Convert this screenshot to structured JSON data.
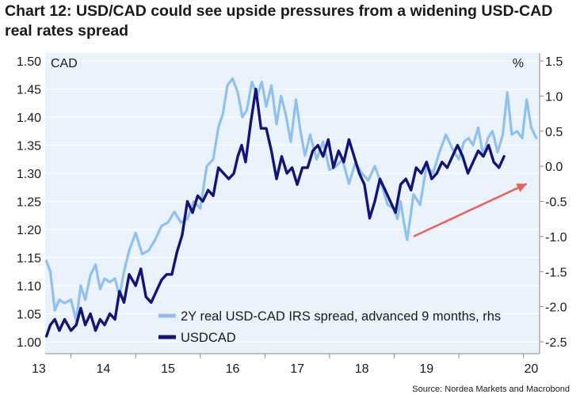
{
  "title": "Chart 12: USD/CAD could see upside pressures from a widening USD-CAD real rates spread",
  "source": "Source: Nordea Markets and Macrobond",
  "chart_data": {
    "type": "line",
    "x_ticks": [
      "13",
      "14",
      "15",
      "16",
      "17",
      "18",
      "19",
      "20"
    ],
    "x_range": [
      2012.6,
      2020.25
    ],
    "left_axis": {
      "label": "CAD",
      "range": [
        1.0,
        1.5
      ],
      "ticks": [
        "1.00",
        "1.05",
        "1.10",
        "1.15",
        "1.20",
        "1.25",
        "1.30",
        "1.35",
        "1.40",
        "1.45",
        "1.50"
      ]
    },
    "right_axis": {
      "label": "%",
      "range": [
        -2.5,
        1.5
      ],
      "ticks": [
        "1.5",
        "1.0",
        "0.5",
        "0.0",
        "-0.5",
        "-1.0",
        "-1.5",
        "-2.0",
        "-2.5"
      ]
    },
    "series": [
      {
        "name": "2Y real USD-CAD IRS spread, advanced 9 months, rhs",
        "axis": "right",
        "color": "#8fc0ee",
        "x": [
          2012.62,
          2012.68,
          2012.75,
          2012.82,
          2012.9,
          2013.0,
          2013.08,
          2013.15,
          2013.22,
          2013.3,
          2013.38,
          2013.45,
          2013.52,
          2013.6,
          2013.68,
          2013.75,
          2013.82,
          2013.9,
          2014.0,
          2014.1,
          2014.2,
          2014.3,
          2014.4,
          2014.5,
          2014.6,
          2014.7,
          2014.8,
          2014.9,
          2015.0,
          2015.1,
          2015.2,
          2015.28,
          2015.35,
          2015.42,
          2015.5,
          2015.58,
          2015.65,
          2015.72,
          2015.8,
          2015.88,
          2015.95,
          2016.02,
          2016.1,
          2016.18,
          2016.25,
          2016.32,
          2016.4,
          2016.48,
          2016.55,
          2016.62,
          2016.7,
          2016.8,
          2016.9,
          2017.0,
          2017.1,
          2017.2,
          2017.3,
          2017.4,
          2017.5,
          2017.6,
          2017.7,
          2017.8,
          2017.9,
          2018.0,
          2018.05,
          2018.1,
          2018.15,
          2018.2,
          2018.3,
          2018.4,
          2018.5,
          2018.6,
          2018.7,
          2018.8,
          2018.9,
          2019.0,
          2019.08,
          2019.15,
          2019.22,
          2019.3,
          2019.38,
          2019.45,
          2019.52,
          2019.6,
          2019.68,
          2019.75,
          2019.82,
          2019.9,
          2019.98,
          2020.05,
          2020.12,
          2020.2
        ],
        "values": [
          -1.35,
          -1.5,
          -2.05,
          -1.9,
          -1.95,
          -1.9,
          -2.2,
          -1.7,
          -1.9,
          -1.55,
          -1.4,
          -1.75,
          -1.6,
          -1.65,
          -1.6,
          -1.85,
          -1.5,
          -1.2,
          -0.95,
          -1.25,
          -1.2,
          -1.05,
          -0.85,
          -0.8,
          -0.65,
          -0.8,
          -0.75,
          -0.5,
          -0.6,
          0.0,
          0.1,
          0.55,
          0.75,
          1.15,
          1.25,
          1.05,
          0.7,
          0.8,
          1.2,
          1.0,
          1.2,
          0.85,
          1.15,
          0.6,
          1.0,
          0.75,
          0.35,
          0.95,
          0.5,
          0.15,
          0.45,
          0.1,
          0.35,
          -0.05,
          0.0,
          0.1,
          -0.25,
          0.05,
          -0.1,
          -0.2,
          0.0,
          -0.25,
          -0.55,
          -0.6,
          -0.75,
          -0.5,
          -0.8,
          -1.05,
          -0.4,
          -0.55,
          0.0,
          -0.1,
          0.2,
          0.45,
          0.25,
          0.1,
          0.35,
          0.4,
          0.3,
          0.55,
          0.15,
          0.4,
          0.5,
          0.2,
          0.45,
          1.05,
          0.45,
          0.5,
          0.4,
          0.95,
          0.55,
          0.4
        ]
      },
      {
        "name": "USDCAD",
        "axis": "left",
        "color": "#141478",
        "x": [
          2012.62,
          2012.68,
          2012.75,
          2012.82,
          2012.9,
          2013.0,
          2013.08,
          2013.15,
          2013.22,
          2013.3,
          2013.38,
          2013.45,
          2013.52,
          2013.6,
          2013.68,
          2013.75,
          2013.82,
          2013.9,
          2014.0,
          2014.08,
          2014.16,
          2014.24,
          2014.32,
          2014.4,
          2014.48,
          2014.56,
          2014.64,
          2014.72,
          2014.8,
          2014.88,
          2014.96,
          2015.04,
          2015.12,
          2015.2,
          2015.28,
          2015.36,
          2015.44,
          2015.52,
          2015.58,
          2015.64,
          2015.7,
          2015.78,
          2015.86,
          2015.94,
          2016.02,
          2016.1,
          2016.18,
          2016.26,
          2016.34,
          2016.42,
          2016.5,
          2016.58,
          2016.66,
          2016.74,
          2016.82,
          2016.9,
          2016.98,
          2017.06,
          2017.14,
          2017.22,
          2017.3,
          2017.38,
          2017.46,
          2017.54,
          2017.62,
          2017.7,
          2017.78,
          2017.86,
          2017.94,
          2018.02,
          2018.1,
          2018.18,
          2018.26,
          2018.34,
          2018.42,
          2018.5,
          2018.58,
          2018.66,
          2018.74,
          2018.82,
          2018.9,
          2018.98,
          2019.06,
          2019.14,
          2019.22,
          2019.3,
          2019.38,
          2019.46,
          2019.54,
          2019.62,
          2019.7
        ],
        "values": [
          1.01,
          1.03,
          1.04,
          1.02,
          1.04,
          1.02,
          1.03,
          1.06,
          1.03,
          1.05,
          1.02,
          1.04,
          1.03,
          1.05,
          1.04,
          1.09,
          1.07,
          1.12,
          1.1,
          1.13,
          1.08,
          1.07,
          1.09,
          1.11,
          1.12,
          1.12,
          1.16,
          1.19,
          1.25,
          1.23,
          1.26,
          1.25,
          1.27,
          1.26,
          1.31,
          1.3,
          1.29,
          1.3,
          1.33,
          1.35,
          1.32,
          1.39,
          1.45,
          1.38,
          1.38,
          1.34,
          1.29,
          1.33,
          1.3,
          1.31,
          1.28,
          1.31,
          1.31,
          1.34,
          1.35,
          1.33,
          1.36,
          1.31,
          1.34,
          1.32,
          1.36,
          1.33,
          1.3,
          1.28,
          1.22,
          1.25,
          1.29,
          1.27,
          1.25,
          1.23,
          1.28,
          1.29,
          1.27,
          1.31,
          1.3,
          1.32,
          1.29,
          1.3,
          1.32,
          1.31,
          1.33,
          1.35,
          1.33,
          1.3,
          1.32,
          1.34,
          1.33,
          1.35,
          1.32,
          1.31,
          1.33
        ]
      }
    ],
    "annotation": {
      "type": "arrow",
      "color": "#e8645a",
      "from": [
        2018.3,
        -1.0
      ],
      "to": [
        2020.05,
        -0.25
      ]
    }
  }
}
